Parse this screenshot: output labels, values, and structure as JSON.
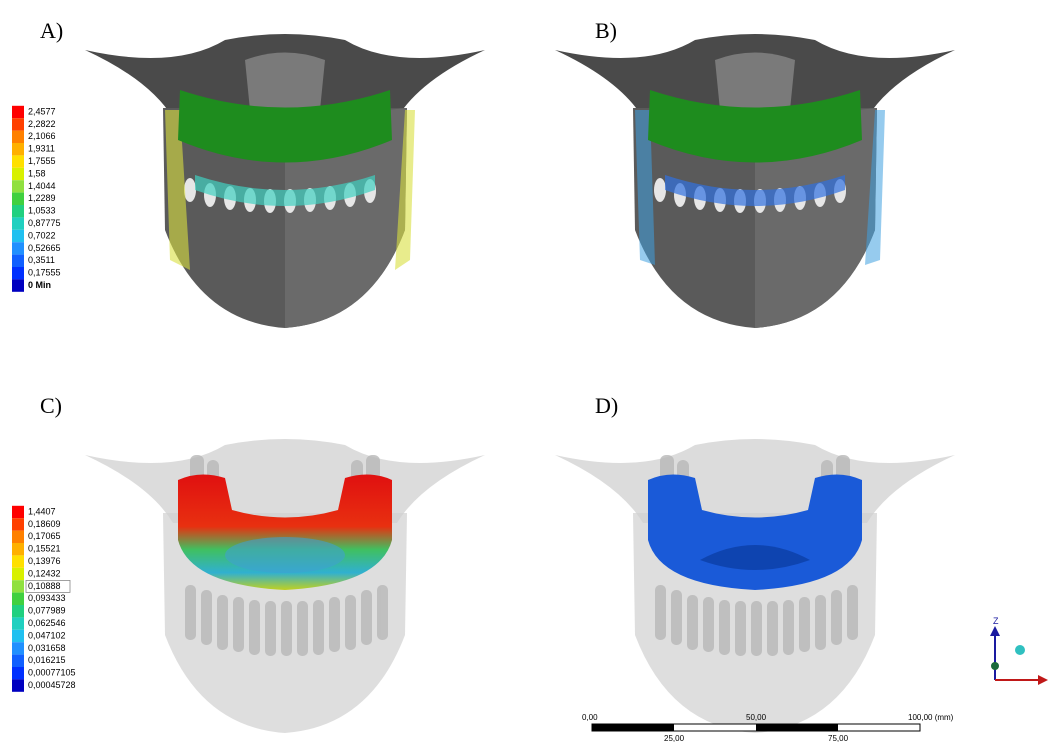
{
  "panels": [
    {
      "label": "A)"
    },
    {
      "label": "B)"
    },
    {
      "label": "C)"
    },
    {
      "label": "D)"
    }
  ],
  "legend_a": {
    "labels": [
      "2,4577",
      "2,2822",
      "2,1066",
      "1,9311",
      "1,7555",
      "1,58",
      "1,4044",
      "1,2289",
      "1,0533",
      "0,87775",
      "0,7022",
      "0,52665",
      "0,3511",
      "0,17555",
      "0 Min"
    ]
  },
  "legend_c": {
    "labels": [
      "1,4407",
      "0,18609",
      "0,17065",
      "0,15521",
      "0,13976",
      "0,12432",
      "0,10888",
      "0,093433",
      "0,077989",
      "0,062546",
      "0,047102",
      "0,031658",
      "0,016215",
      "0,00077105",
      "0,00045728"
    ]
  },
  "scale_bar": {
    "top_labels": [
      "0,00",
      "50,00",
      "100,00 (mm)"
    ],
    "bottom_labels": [
      "25,00",
      "75,00"
    ]
  },
  "axis_triad": {
    "label": "Z"
  }
}
